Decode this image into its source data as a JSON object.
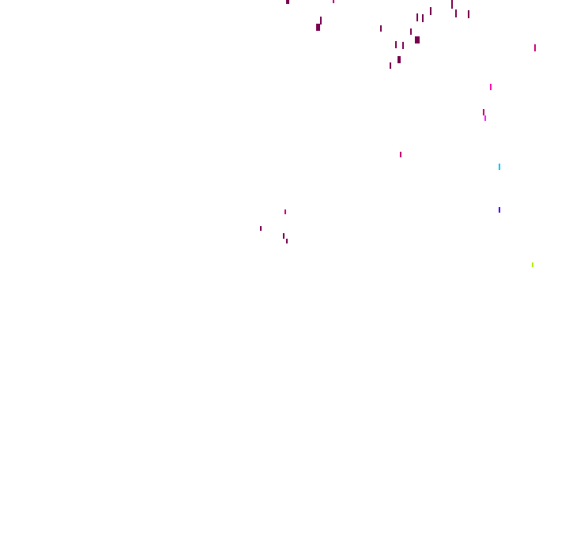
{
  "background": "#ffffff",
  "colors": {
    "dark_magenta": "#7a0050",
    "magenta": "#c8007a",
    "pink": "#ff10b0",
    "violet_pink": "#ff20ff",
    "cyan": "#00c8ff",
    "blue_violet": "#5000ff",
    "lime": "#b0f000"
  }
}
